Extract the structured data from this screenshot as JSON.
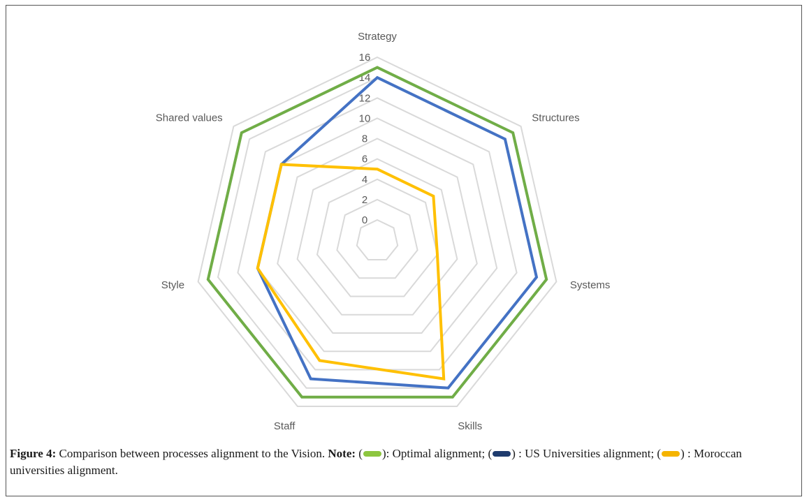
{
  "chart_data": {
    "type": "radar",
    "categories": [
      "Strategy",
      "Structures",
      "Systems",
      "Skills",
      "Staff",
      "Style",
      "Shared values"
    ],
    "series": [
      {
        "name": "Optimal alignment",
        "color": "#70AD47",
        "values": [
          15,
          15,
          15,
          15,
          15,
          15,
          15
        ]
      },
      {
        "name": "US Universities alignment",
        "color": "#4472C4",
        "values": [
          14,
          14,
          14,
          14,
          13,
          10,
          10
        ]
      },
      {
        "name": "Moroccan universities alignment",
        "color": "#FFC000",
        "values": [
          5,
          5,
          4,
          13,
          11,
          10,
          10
        ]
      }
    ],
    "axis_range": [
      0,
      16
    ],
    "ticks": [
      0,
      2,
      4,
      6,
      8,
      10,
      12,
      14,
      16
    ],
    "grid": true,
    "grid_color": "#d9d9d9"
  },
  "caption": {
    "figure_label": "Figure 4:",
    "text": " Comparison between processes alignment to the Vision. ",
    "note_label": "Note:",
    "open1": " (",
    "legend1": "): Optimal alignment; (",
    "legend2": ") : US Universities alignment; (",
    "legend3": ") : Moroccan universities alignment."
  }
}
